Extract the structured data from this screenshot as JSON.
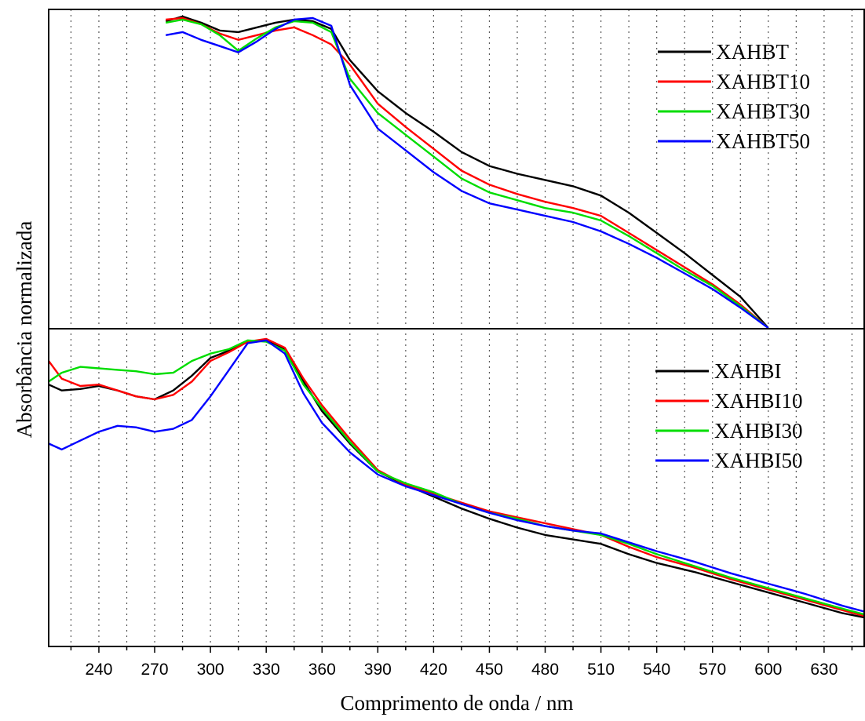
{
  "chart_data": {
    "type": "line",
    "xlabel": "Comprimento de onda / nm",
    "ylabel": "Absorbância normalizada",
    "xlim": [
      213,
      652
    ],
    "x_ticks": [
      240,
      270,
      300,
      330,
      360,
      390,
      420,
      450,
      480,
      510,
      540,
      570,
      600,
      630
    ],
    "grid": "vertical-dotted",
    "legend_position": "top-right",
    "panels": [
      {
        "ylim": [
          0,
          1
        ],
        "series": [
          {
            "name": "XAHBT",
            "color": "#000000",
            "x": [
              276,
              285,
              295,
              305,
              315,
              325,
              335,
              345,
              355,
              365,
              375,
              390,
              405,
              420,
              435,
              450,
              465,
              480,
              495,
              510,
              525,
              540,
              555,
              570,
              585,
              600
            ],
            "y": [
              0.985,
              1.0,
              0.98,
              0.955,
              0.95,
              0.965,
              0.98,
              0.99,
              0.985,
              0.96,
              0.86,
              0.76,
              0.69,
              0.63,
              0.565,
              0.52,
              0.495,
              0.475,
              0.455,
              0.425,
              0.37,
              0.305,
              0.24,
              0.17,
              0.1,
              0.0
            ]
          },
          {
            "name": "XAHBT10",
            "color": "#ff0000",
            "x": [
              276,
              285,
              295,
              305,
              315,
              325,
              335,
              345,
              355,
              365,
              375,
              390,
              405,
              420,
              435,
              450,
              465,
              480,
              495,
              510,
              525,
              540,
              555,
              570,
              585,
              600
            ],
            "y": [
              0.99,
              0.995,
              0.975,
              0.945,
              0.925,
              0.94,
              0.955,
              0.965,
              0.94,
              0.91,
              0.845,
              0.72,
              0.645,
              0.575,
              0.505,
              0.46,
              0.43,
              0.405,
              0.385,
              0.36,
              0.305,
              0.25,
              0.195,
              0.14,
              0.075,
              0.0
            ]
          },
          {
            "name": "XAHBT30",
            "color": "#00dd00",
            "x": [
              276,
              285,
              295,
              305,
              315,
              325,
              335,
              345,
              355,
              365,
              375,
              390,
              405,
              420,
              435,
              450,
              465,
              480,
              495,
              510,
              525,
              540,
              555,
              570,
              585,
              600
            ],
            "y": [
              0.98,
              0.99,
              0.975,
              0.94,
              0.89,
              0.93,
              0.965,
              0.985,
              0.98,
              0.95,
              0.8,
              0.69,
              0.62,
              0.55,
              0.48,
              0.435,
              0.41,
              0.385,
              0.37,
              0.345,
              0.295,
              0.24,
              0.185,
              0.135,
              0.07,
              0.0
            ]
          },
          {
            "name": "XAHBT50",
            "color": "#0000ff",
            "x": [
              276,
              285,
              295,
              305,
              315,
              325,
              335,
              345,
              355,
              365,
              375,
              390,
              405,
              420,
              435,
              450,
              465,
              480,
              495,
              510,
              525,
              540,
              555,
              570,
              585,
              600
            ],
            "y": [
              0.94,
              0.95,
              0.925,
              0.905,
              0.885,
              0.92,
              0.96,
              0.99,
              0.995,
              0.97,
              0.78,
              0.64,
              0.57,
              0.5,
              0.44,
              0.4,
              0.38,
              0.36,
              0.34,
              0.31,
              0.27,
              0.225,
              0.175,
              0.125,
              0.065,
              0.0
            ]
          }
        ]
      },
      {
        "ylim": [
          0,
          1
        ],
        "series": [
          {
            "name": "XAHBI",
            "color": "#000000",
            "x": [
              213,
              220,
              230,
              240,
              250,
              260,
              270,
              280,
              290,
              300,
              310,
              320,
              330,
              340,
              350,
              360,
              375,
              390,
              405,
              420,
              435,
              450,
              465,
              480,
              495,
              510,
              525,
              540,
              560,
              580,
              600,
              620,
              640,
              652
            ],
            "y": [
              0.84,
              0.82,
              0.825,
              0.835,
              0.82,
              0.8,
              0.79,
              0.82,
              0.87,
              0.93,
              0.955,
              0.985,
              0.99,
              0.96,
              0.85,
              0.75,
              0.64,
              0.545,
              0.5,
              0.46,
              0.42,
              0.385,
              0.355,
              0.33,
              0.315,
              0.3,
              0.265,
              0.235,
              0.205,
              0.17,
              0.135,
              0.1,
              0.065,
              0.05
            ]
          },
          {
            "name": "XAHBI10",
            "color": "#ff0000",
            "x": [
              213,
              220,
              230,
              240,
              250,
              260,
              270,
              280,
              290,
              300,
              310,
              320,
              330,
              340,
              350,
              360,
              375,
              390,
              405,
              420,
              435,
              450,
              465,
              480,
              495,
              510,
              525,
              540,
              560,
              580,
              600,
              620,
              640,
              652
            ],
            "y": [
              0.92,
              0.86,
              0.835,
              0.84,
              0.82,
              0.8,
              0.79,
              0.805,
              0.85,
              0.92,
              0.95,
              0.985,
              0.995,
              0.965,
              0.86,
              0.77,
              0.655,
              0.55,
              0.5,
              0.47,
              0.44,
              0.41,
              0.39,
              0.37,
              0.35,
              0.33,
              0.29,
              0.255,
              0.22,
              0.18,
              0.145,
              0.11,
              0.075,
              0.055
            ]
          },
          {
            "name": "XAHBI30",
            "color": "#00dd00",
            "x": [
              213,
              220,
              230,
              240,
              250,
              260,
              270,
              280,
              290,
              300,
              310,
              320,
              330,
              340,
              350,
              360,
              375,
              390,
              405,
              420,
              435,
              450,
              465,
              480,
              495,
              510,
              525,
              540,
              560,
              580,
              600,
              620,
              640,
              652
            ],
            "y": [
              0.85,
              0.88,
              0.9,
              0.895,
              0.89,
              0.885,
              0.875,
              0.88,
              0.92,
              0.945,
              0.96,
              0.99,
              0.985,
              0.955,
              0.84,
              0.76,
              0.645,
              0.545,
              0.505,
              0.475,
              0.435,
              0.405,
              0.385,
              0.36,
              0.345,
              0.33,
              0.3,
              0.265,
              0.225,
              0.185,
              0.15,
              0.115,
              0.08,
              0.06
            ]
          },
          {
            "name": "XAHBI50",
            "color": "#0000ff",
            "x": [
              213,
              220,
              230,
              240,
              250,
              260,
              270,
              280,
              290,
              300,
              310,
              320,
              330,
              340,
              350,
              360,
              375,
              390,
              405,
              420,
              435,
              450,
              465,
              480,
              495,
              510,
              525,
              540,
              560,
              580,
              600,
              620,
              640,
              652
            ],
            "y": [
              0.64,
              0.62,
              0.65,
              0.68,
              0.7,
              0.695,
              0.68,
              0.69,
              0.72,
              0.8,
              0.89,
              0.98,
              0.99,
              0.945,
              0.81,
              0.71,
              0.61,
              0.535,
              0.495,
              0.465,
              0.435,
              0.405,
              0.38,
              0.36,
              0.345,
              0.335,
              0.305,
              0.275,
              0.24,
              0.2,
              0.165,
              0.13,
              0.09,
              0.07
            ]
          }
        ]
      }
    ]
  }
}
